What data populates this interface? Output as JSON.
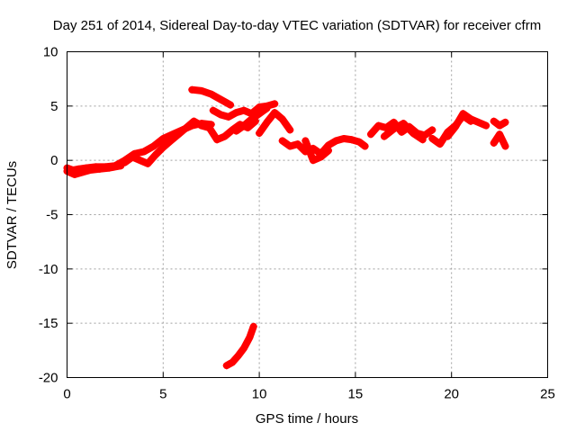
{
  "chart_data": {
    "type": "scatter",
    "title": "Day 251 of 2014, Sidereal Day-to-day VTEC variation (SDTVAR) for receiver cfrm",
    "xlabel": "GPS time / hours",
    "ylabel": "SDTVAR / TECUs",
    "xlim": [
      0,
      25
    ],
    "ylim": [
      -20,
      10
    ],
    "xticks": [
      0,
      5,
      10,
      15,
      20,
      25
    ],
    "yticks": [
      -20,
      -15,
      -10,
      -5,
      0,
      5,
      10
    ],
    "grid": true,
    "marker": "+",
    "series": [
      {
        "name": "SDTVAR",
        "color": "#ff0000",
        "segments": [
          {
            "x": [
              0.0,
              0.3,
              0.6,
              1.0,
              1.5,
              2.0,
              2.5,
              3.0,
              3.5,
              4.0,
              4.5,
              5.0,
              5.5,
              6.0,
              6.5,
              7.0,
              7.5
            ],
            "y": [
              -0.7,
              -0.9,
              -0.8,
              -0.7,
              -0.6,
              -0.6,
              -0.5,
              0.0,
              0.6,
              0.8,
              1.3,
              2.0,
              2.4,
              2.8,
              3.2,
              3.4,
              3.3
            ]
          },
          {
            "x": [
              0.0,
              0.4,
              0.8,
              1.2,
              1.7,
              2.2,
              2.8
            ],
            "y": [
              -1.0,
              -1.3,
              -1.1,
              -0.9,
              -0.8,
              -0.7,
              -0.5
            ]
          },
          {
            "x": [
              3.0,
              3.4,
              3.8,
              4.2,
              4.6,
              5.0,
              5.4,
              5.8,
              6.2,
              6.6,
              7.0,
              7.4
            ],
            "y": [
              -0.2,
              0.3,
              0.0,
              -0.3,
              0.5,
              1.2,
              1.8,
              2.4,
              3.0,
              3.6,
              3.2,
              3.0
            ]
          },
          {
            "x": [
              6.5,
              7.0,
              7.5,
              8.0,
              8.5
            ],
            "y": [
              6.5,
              6.4,
              6.1,
              5.6,
              5.1
            ]
          },
          {
            "x": [
              7.4,
              7.8,
              8.2,
              8.6,
              9.0,
              9.4,
              9.8
            ],
            "y": [
              3.0,
              1.9,
              2.2,
              2.8,
              3.3,
              3.0,
              3.6
            ]
          },
          {
            "x": [
              7.6,
              8.0,
              8.4,
              8.8,
              9.2,
              9.6,
              10.0,
              10.4,
              10.8
            ],
            "y": [
              4.6,
              4.2,
              4.0,
              4.4,
              4.6,
              4.3,
              4.9,
              5.0,
              5.2
            ]
          },
          {
            "x": [
              8.8,
              9.2,
              9.6,
              10.0,
              10.4
            ],
            "y": [
              2.7,
              3.2,
              3.8,
              4.3,
              4.8
            ]
          },
          {
            "x": [
              10.0,
              10.4,
              10.8,
              11.2,
              11.6
            ],
            "y": [
              2.5,
              3.5,
              4.4,
              3.8,
              2.8
            ]
          },
          {
            "x": [
              11.2,
              11.6,
              12.0,
              12.4,
              12.8,
              13.2,
              13.6,
              14.0,
              14.4,
              14.8,
              15.2,
              15.5
            ],
            "y": [
              1.8,
              1.3,
              1.5,
              0.8,
              1.1,
              0.6,
              1.4,
              1.8,
              2.0,
              1.9,
              1.7,
              1.3
            ]
          },
          {
            "x": [
              12.4,
              12.8,
              13.2,
              13.6
            ],
            "y": [
              1.8,
              0.0,
              0.3,
              0.9
            ]
          },
          {
            "x": [
              8.3,
              8.6,
              8.9,
              9.2,
              9.5,
              9.7
            ],
            "y": [
              -18.9,
              -18.6,
              -18.0,
              -17.3,
              -16.3,
              -15.3
            ]
          },
          {
            "x": [
              15.8,
              16.2,
              16.6,
              17.0,
              17.4,
              17.8,
              18.2,
              18.6,
              19.0
            ],
            "y": [
              2.4,
              3.2,
              3.0,
              3.5,
              2.6,
              3.1,
              2.5,
              2.3,
              2.8
            ]
          },
          {
            "x": [
              16.5,
              17.0,
              17.5,
              18.0,
              18.5
            ],
            "y": [
              2.2,
              2.9,
              3.4,
              2.5,
              1.9
            ]
          },
          {
            "x": [
              19.0,
              19.4,
              19.8,
              20.2,
              20.6,
              21.0
            ],
            "y": [
              2.0,
              1.5,
              2.6,
              3.2,
              4.1,
              3.6
            ]
          },
          {
            "x": [
              19.8,
              20.2,
              20.6,
              21.0,
              21.4,
              21.8
            ],
            "y": [
              2.2,
              3.1,
              4.3,
              3.8,
              3.5,
              3.2
            ]
          },
          {
            "x": [
              22.2,
              22.5,
              22.8
            ],
            "y": [
              3.6,
              3.2,
              3.5
            ]
          },
          {
            "x": [
              22.2,
              22.5,
              22.8
            ],
            "y": [
              1.6,
              2.4,
              1.3
            ]
          }
        ]
      }
    ]
  }
}
